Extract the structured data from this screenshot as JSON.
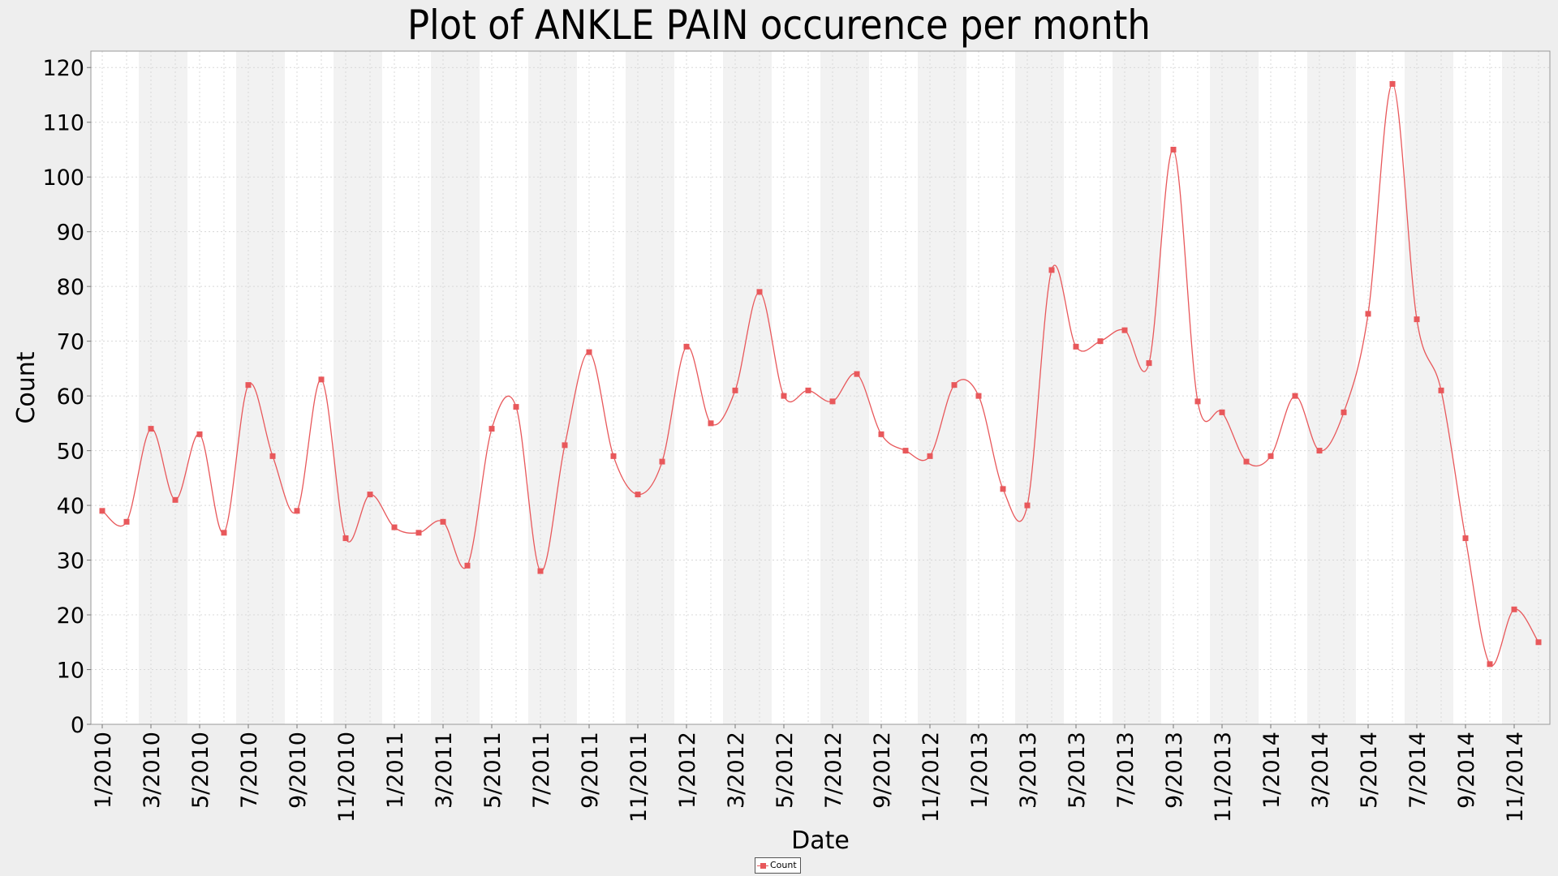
{
  "chart_data": {
    "type": "line",
    "title": "Plot of ANKLE PAIN occurence per month",
    "xlabel": "Date",
    "ylabel": "Count",
    "ylim": [
      0,
      123
    ],
    "y_ticks": [
      0,
      10,
      20,
      30,
      40,
      50,
      60,
      70,
      80,
      90,
      100,
      110,
      120
    ],
    "x_tick_labels": [
      "1/2010",
      "3/2010",
      "5/2010",
      "7/2010",
      "9/2010",
      "11/2010",
      "1/2011",
      "3/2011",
      "5/2011",
      "7/2011",
      "9/2011",
      "11/2011",
      "1/2012",
      "3/2012",
      "5/2012",
      "7/2012",
      "9/2012",
      "11/2012",
      "1/2013",
      "3/2013",
      "5/2013",
      "7/2013",
      "9/2013",
      "11/2013",
      "1/2014",
      "3/2014",
      "5/2014",
      "7/2014",
      "9/2014",
      "11/2014"
    ],
    "x": [
      "1/2010",
      "2/2010",
      "3/2010",
      "4/2010",
      "5/2010",
      "6/2010",
      "7/2010",
      "8/2010",
      "9/2010",
      "10/2010",
      "11/2010",
      "12/2010",
      "1/2011",
      "2/2011",
      "3/2011",
      "4/2011",
      "5/2011",
      "6/2011",
      "7/2011",
      "8/2011",
      "9/2011",
      "10/2011",
      "11/2011",
      "12/2011",
      "1/2012",
      "2/2012",
      "3/2012",
      "4/2012",
      "5/2012",
      "6/2012",
      "7/2012",
      "8/2012",
      "9/2012",
      "10/2012",
      "11/2012",
      "12/2012",
      "1/2013",
      "2/2013",
      "3/2013",
      "4/2013",
      "5/2013",
      "6/2013",
      "7/2013",
      "8/2013",
      "9/2013",
      "10/2013",
      "11/2013",
      "12/2013",
      "1/2014",
      "2/2014",
      "3/2014",
      "4/2014",
      "5/2014",
      "6/2014",
      "7/2014",
      "8/2014",
      "9/2014",
      "10/2014",
      "11/2014",
      "12/2014"
    ],
    "series": [
      {
        "name": "Count",
        "color": "#e8585b",
        "values": [
          39,
          37,
          54,
          41,
          53,
          35,
          62,
          49,
          39,
          63,
          34,
          42,
          36,
          35,
          37,
          29,
          54,
          58,
          28,
          51,
          68,
          49,
          42,
          48,
          69,
          55,
          61,
          79,
          60,
          61,
          59,
          64,
          53,
          50,
          49,
          62,
          60,
          43,
          40,
          83,
          69,
          70,
          72,
          66,
          105,
          59,
          57,
          48,
          49,
          60,
          50,
          57,
          75,
          117,
          74,
          61,
          34,
          11,
          21,
          15
        ]
      }
    ],
    "grid": true,
    "legend_position": "bottom-center"
  },
  "colors": {
    "background": "#eeeeee",
    "plot_background": "#ffffff",
    "band": "#f2f2f2",
    "gridline": "#d8d8d8",
    "series": "#e8585b"
  }
}
